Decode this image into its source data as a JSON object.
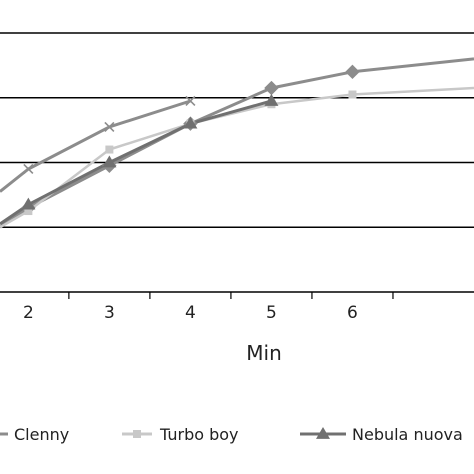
{
  "chart_data": {
    "type": "line",
    "title": "",
    "xlabel": "Min",
    "ylabel": "",
    "x_ticks": [
      "2",
      "3",
      "4",
      "5",
      "6"
    ],
    "x_tick_values": [
      2,
      3,
      4,
      5,
      6
    ],
    "xlim": [
      1.65,
      7.5
    ],
    "ylim": [
      0,
      4
    ],
    "gridlines_y": [
      1,
      2,
      3,
      4
    ],
    "grid": "horizontal",
    "legend_position": "bottom",
    "series": [
      {
        "name": "",
        "color": "#8c8c8c",
        "marker": "x",
        "x": [
          1.65,
          2,
          3,
          4
        ],
        "y": [
          1.55,
          1.9,
          2.55,
          2.95
        ]
      },
      {
        "name": "Clenny",
        "color": "#8c8c8c",
        "marker": "diamond",
        "x": [
          1.65,
          2,
          3,
          4,
          5,
          6,
          7.5
        ],
        "y": [
          1.0,
          1.3,
          1.95,
          2.6,
          3.15,
          3.4,
          3.6
        ]
      },
      {
        "name": "Turbo boy",
        "color": "#c8c8c8",
        "marker": "square",
        "x": [
          1.65,
          2,
          3,
          4,
          5,
          6,
          7.5
        ],
        "y": [
          1.0,
          1.25,
          2.2,
          2.6,
          2.9,
          3.05,
          3.15
        ]
      },
      {
        "name": "Nebula nuova",
        "color": "#707070",
        "marker": "triangle",
        "x": [
          1.65,
          2,
          3,
          4,
          5
        ],
        "y": [
          1.05,
          1.35,
          2.0,
          2.6,
          2.95
        ]
      }
    ]
  }
}
